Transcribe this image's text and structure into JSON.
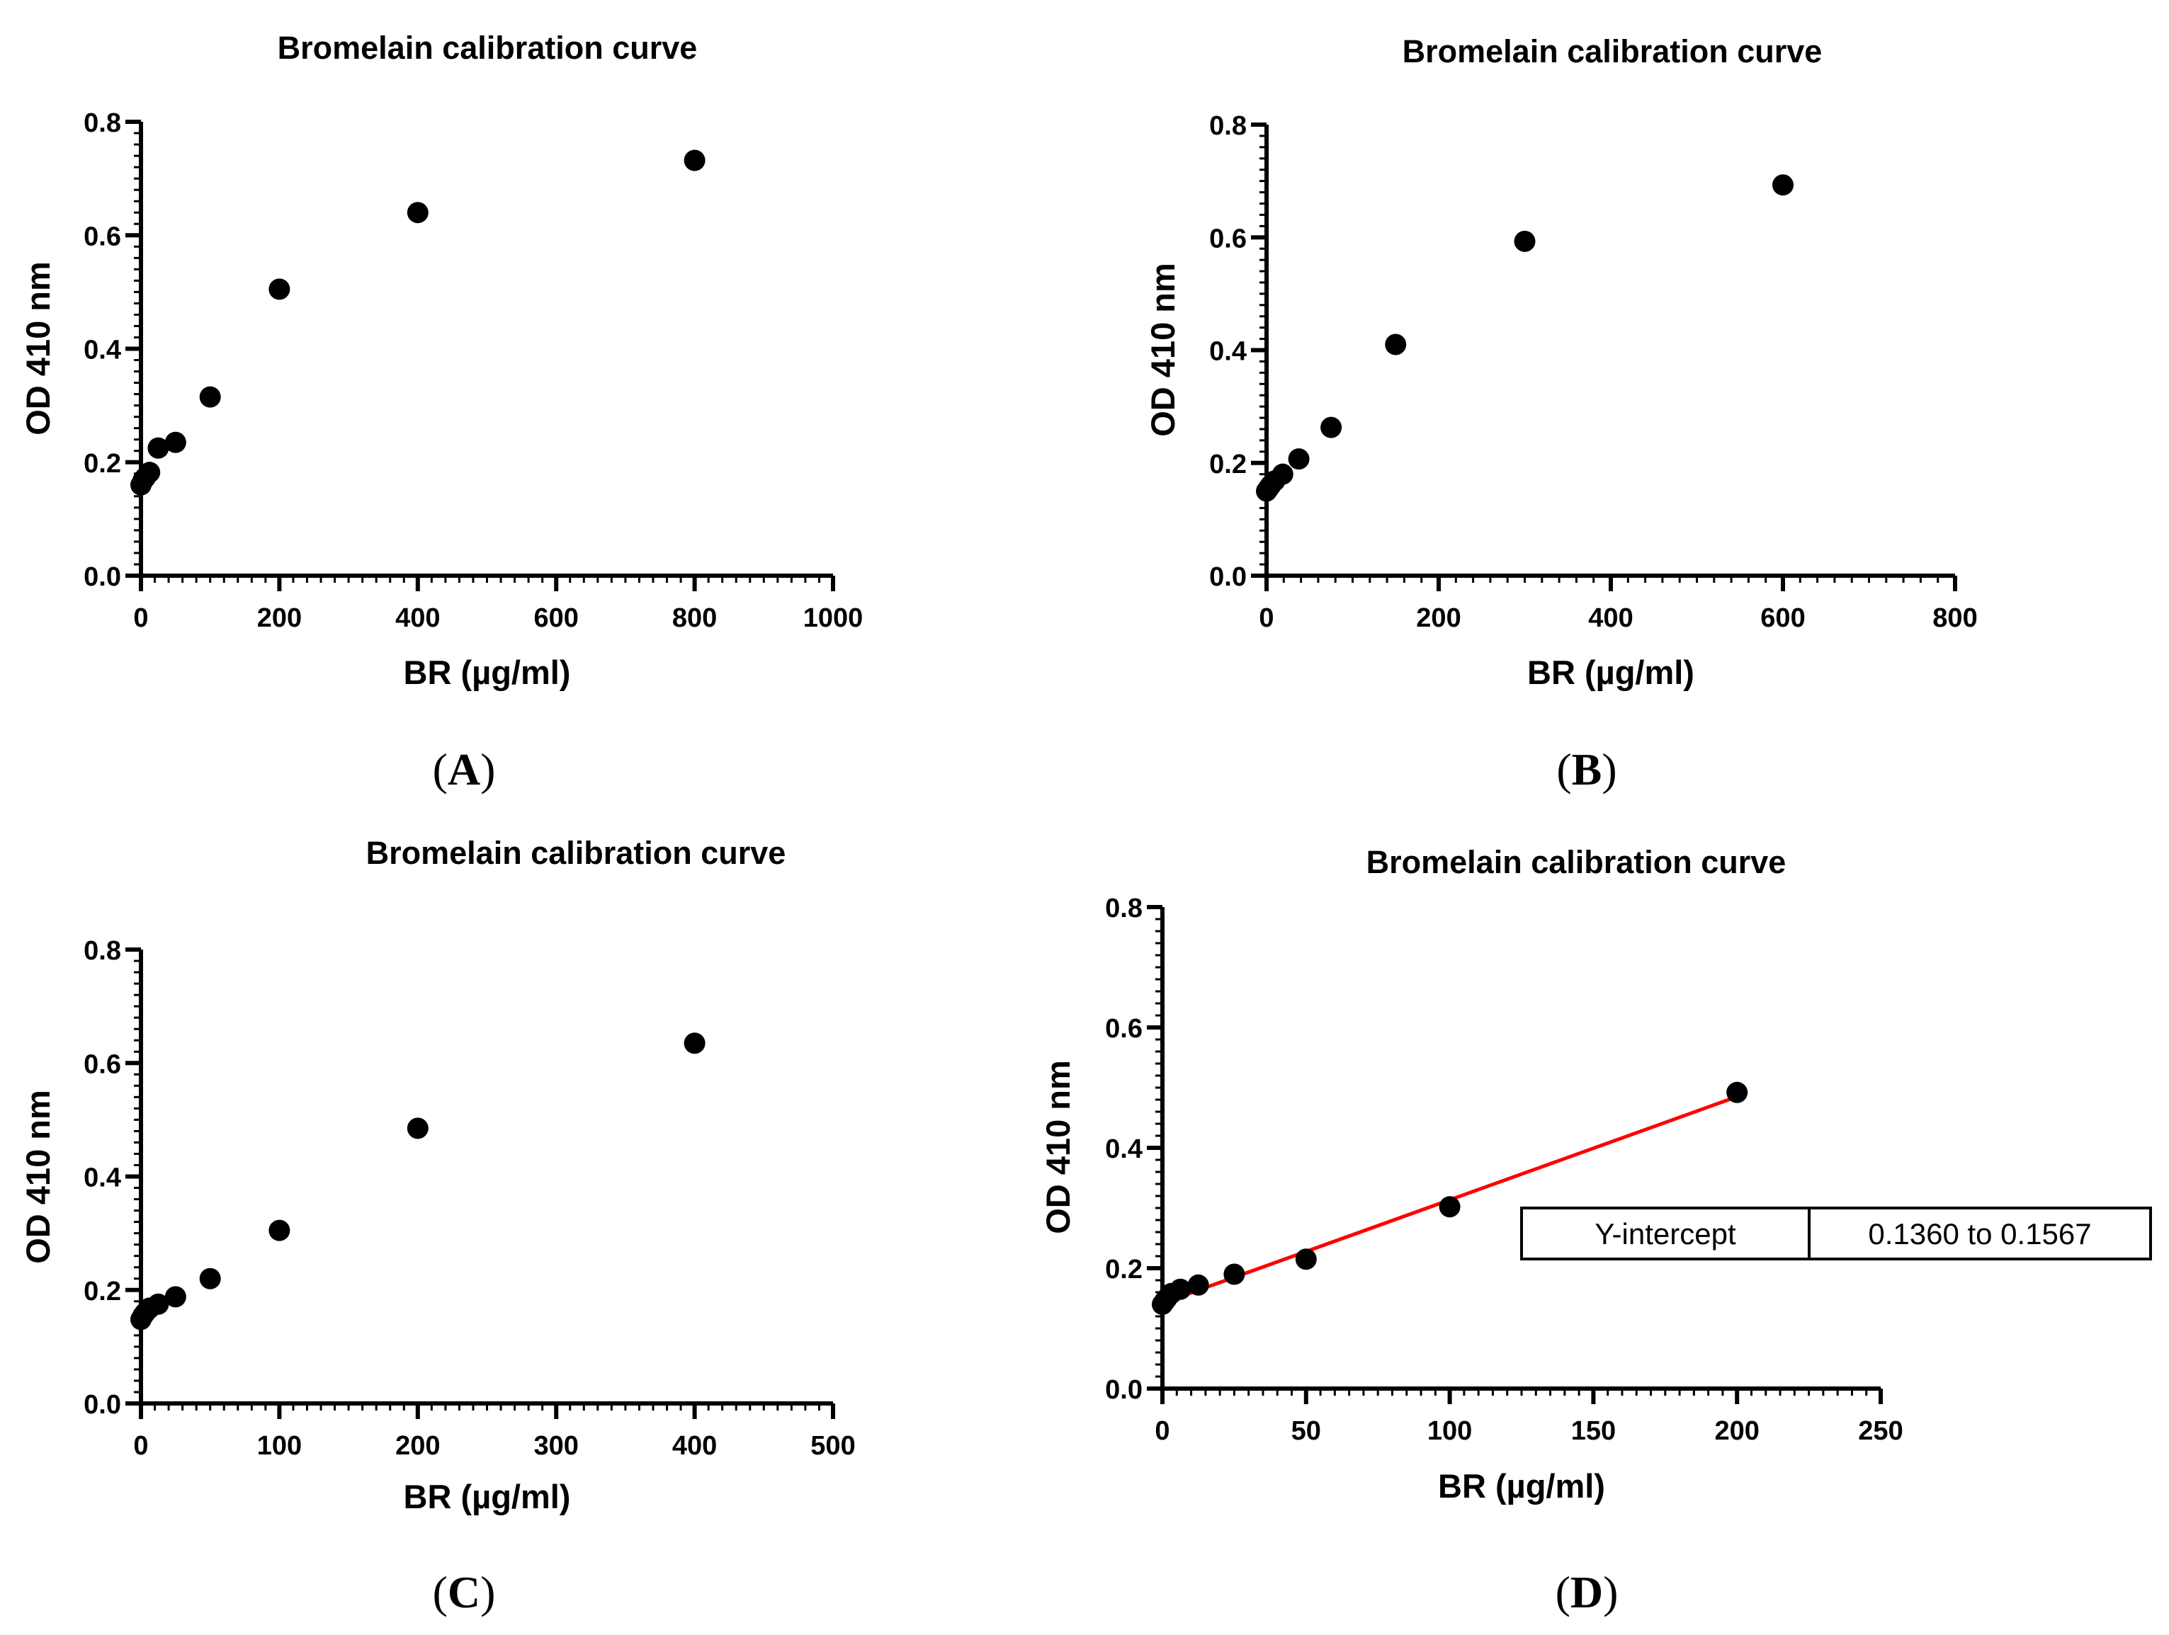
{
  "chart_data": [
    {
      "panel": "A",
      "type": "scatter",
      "title": "Bromelain calibration curve",
      "xlabel": "BR (µg/ml)",
      "ylabel": "OD 410 nm",
      "xlim": [
        0,
        1000
      ],
      "ylim": [
        0,
        0.8
      ],
      "xticks": [
        0,
        200,
        400,
        600,
        800,
        1000
      ],
      "xtick_labels": [
        "0",
        "200",
        "400",
        "600",
        "800",
        "1000"
      ],
      "yticks": [
        0,
        0.2,
        0.4,
        0.6,
        0.8
      ],
      "ytick_labels": [
        "0.0",
        "0.2",
        "0.4",
        "0.6",
        "0.8"
      ],
      "x_minor_step": 20,
      "y_minor_step": 0.02,
      "x": [
        0,
        3.125,
        6.25,
        12.5,
        25,
        50,
        100,
        200,
        400,
        800
      ],
      "y": [
        0.16,
        0.168,
        0.173,
        0.182,
        0.225,
        0.235,
        0.315,
        0.505,
        0.64,
        0.732
      ],
      "panel_label": {
        "open": "(",
        "letter": "A",
        "close": ")"
      }
    },
    {
      "panel": "B",
      "type": "scatter",
      "title": "Bromelain calibration curve",
      "xlabel": "BR (µg/ml)",
      "ylabel": "OD 410 nm",
      "xlim": [
        0,
        800
      ],
      "ylim": [
        0,
        0.8
      ],
      "xticks": [
        0,
        200,
        400,
        600,
        800
      ],
      "xtick_labels": [
        "0",
        "200",
        "400",
        "600",
        "800"
      ],
      "yticks": [
        0,
        0.2,
        0.4,
        0.6,
        0.8
      ],
      "ytick_labels": [
        "0.0",
        "0.2",
        "0.4",
        "0.6",
        "0.8"
      ],
      "x_minor_step": 20,
      "y_minor_step": 0.02,
      "x": [
        0,
        2.34,
        4.69,
        9.375,
        18.75,
        37.5,
        75,
        150,
        300,
        600
      ],
      "y": [
        0.15,
        0.155,
        0.16,
        0.168,
        0.18,
        0.207,
        0.263,
        0.41,
        0.593,
        0.693
      ],
      "panel_label": {
        "open": "(",
        "letter": "B",
        "close": ")"
      }
    },
    {
      "panel": "C",
      "type": "scatter",
      "title": "Bromelain calibration curve",
      "xlabel": "BR (µg/ml)",
      "ylabel": "OD 410 nm",
      "xlim": [
        0,
        500
      ],
      "ylim": [
        0,
        0.8
      ],
      "xticks": [
        0,
        100,
        200,
        300,
        400,
        500
      ],
      "xtick_labels": [
        "0",
        "100",
        "200",
        "300",
        "400",
        "500"
      ],
      "yticks": [
        0,
        0.2,
        0.4,
        0.6,
        0.8
      ],
      "ytick_labels": [
        "0.0",
        "0.2",
        "0.4",
        "0.6",
        "0.8"
      ],
      "x_minor_step": 10,
      "y_minor_step": 0.02,
      "x": [
        0,
        1.56,
        3.125,
        6.25,
        12.5,
        25,
        50,
        100,
        200,
        400
      ],
      "y": [
        0.148,
        0.155,
        0.16,
        0.168,
        0.175,
        0.188,
        0.22,
        0.305,
        0.485,
        0.635
      ],
      "panel_label": {
        "open": "(",
        "letter": "C",
        "close": ")"
      }
    },
    {
      "panel": "D",
      "type": "scatter",
      "title": "Bromelain calibration curve",
      "xlabel": "BR (µg/ml)",
      "ylabel": "OD 410 nm",
      "xlim": [
        0,
        250
      ],
      "ylim": [
        0,
        0.8
      ],
      "xticks": [
        0,
        50,
        100,
        150,
        200,
        250
      ],
      "xtick_labels": [
        "0",
        "50",
        "100",
        "150",
        "200",
        "250"
      ],
      "yticks": [
        0,
        0.2,
        0.4,
        0.6,
        0.8
      ],
      "ytick_labels": [
        "0.0",
        "0.2",
        "0.4",
        "0.6",
        "0.8"
      ],
      "x_minor_step": 5,
      "y_minor_step": 0.02,
      "x": [
        0,
        0.78,
        1.56,
        3.125,
        6.25,
        12.5,
        25,
        50,
        100,
        200
      ],
      "y": [
        0.14,
        0.145,
        0.15,
        0.158,
        0.165,
        0.172,
        0.19,
        0.215,
        0.302,
        0.492
      ],
      "fit_line": {
        "x": [
          0,
          200
        ],
        "y": [
          0.142,
          0.485
        ],
        "color": "#ff0000"
      },
      "legend_table": {
        "label": "Y-intercept",
        "value": "0.1360 to 0.1567"
      },
      "panel_label": {
        "open": "(",
        "letter": "D",
        "close": ")"
      }
    }
  ]
}
